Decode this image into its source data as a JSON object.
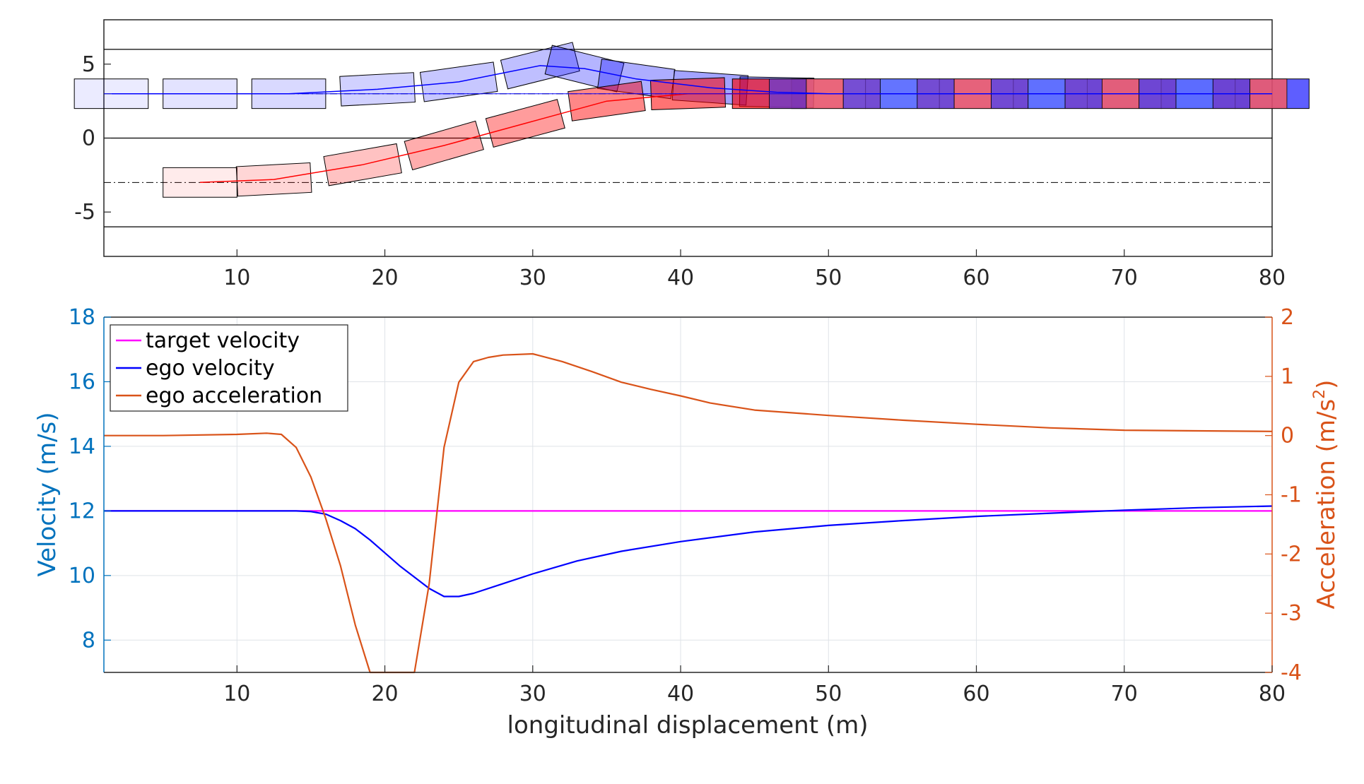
{
  "chart_data": [
    {
      "type": "scatter",
      "subtype": "lane-change trajectory (vehicle footprints)",
      "xlim": [
        1,
        80
      ],
      "ylim": [
        -8,
        8
      ],
      "x_ticks": [
        "10",
        "20",
        "30",
        "40",
        "50",
        "60",
        "70",
        "80"
      ],
      "y_ticks": [
        "5",
        "0",
        "-5"
      ],
      "lane_lines_y": [
        6,
        0,
        -6
      ],
      "lane_centers_y": [
        3,
        -3
      ],
      "grid": false,
      "series": [
        {
          "color": "#0000ff",
          "x": [
            1.5,
            7.5,
            13.5,
            19.5,
            25,
            30.5,
            33.5,
            37,
            42,
            46.5,
            50,
            55,
            60,
            65,
            70,
            75,
            80
          ],
          "y": [
            3,
            3,
            3,
            3.3,
            3.8,
            4.9,
            4.7,
            4.0,
            3.4,
            3.1,
            3.0,
            3.0,
            3.0,
            3.0,
            3.0,
            3.0,
            3.0
          ],
          "heading_deg": [
            0,
            0,
            0,
            3,
            8,
            14,
            -14,
            -8,
            -4,
            -1,
            0,
            0,
            0,
            0,
            0,
            0,
            0
          ]
        },
        {
          "color": "#ff0000",
          "x": [
            7.5,
            12.5,
            18.5,
            24,
            29.5,
            35,
            40.5,
            46
          ],
          "y": [
            -3,
            -2.8,
            -1.8,
            -0.5,
            1.0,
            2.5,
            3.0,
            3.0
          ],
          "heading_deg": [
            0,
            3,
            10,
            16,
            15,
            8,
            2,
            0
          ]
        }
      ],
      "overlap_boxes_x_range": [
        46,
        80
      ]
    },
    {
      "type": "line",
      "xlabel": "longitudinal displacement (m)",
      "ylabel_left": "Velocity (m/s)",
      "ylabel_right_base": "Acceleration (m/s",
      "ylabel_right_sup": "2",
      "ylabel_right_end": ")",
      "xlim": [
        1,
        80
      ],
      "ylim_left": [
        7,
        18
      ],
      "ylim_right": [
        -4,
        2
      ],
      "x_ticks": [
        "10",
        "20",
        "30",
        "40",
        "50",
        "60",
        "70",
        "80"
      ],
      "y_ticks_left": [
        "18",
        "16",
        "14",
        "12",
        "10",
        "8"
      ],
      "y_ticks_right": [
        "2",
        "1",
        "0",
        "-1",
        "-2",
        "-3",
        "-4"
      ],
      "grid": true,
      "legend": "top-left",
      "series": [
        {
          "name": "target velocity",
          "color": "#ff00ff",
          "axis": "left",
          "x": [
            1,
            80
          ],
          "y": [
            12,
            12
          ]
        },
        {
          "name": "ego velocity",
          "color": "#0000ff",
          "axis": "left",
          "x": [
            1,
            10,
            14,
            15,
            16,
            17,
            18,
            19,
            20,
            21,
            22,
            23,
            24,
            25,
            26,
            28,
            30,
            33,
            36,
            40,
            45,
            50,
            55,
            60,
            65,
            70,
            75,
            80
          ],
          "y": [
            12,
            12,
            12,
            11.98,
            11.9,
            11.7,
            11.45,
            11.1,
            10.7,
            10.3,
            9.95,
            9.6,
            9.35,
            9.35,
            9.45,
            9.75,
            10.05,
            10.45,
            10.75,
            11.05,
            11.35,
            11.55,
            11.7,
            11.83,
            11.93,
            12.02,
            12.1,
            12.15
          ]
        },
        {
          "name": "ego acceleration",
          "color": "#D95319",
          "axis": "right",
          "x": [
            1,
            5,
            10,
            12,
            13,
            14,
            15,
            16,
            17,
            18,
            19,
            20,
            21,
            22,
            23,
            24,
            25,
            26,
            27,
            28,
            30,
            32,
            34,
            36,
            38,
            40,
            42,
            45,
            50,
            55,
            60,
            65,
            70,
            75,
            80
          ],
          "y": [
            0,
            0,
            0.02,
            0.04,
            0.02,
            -0.2,
            -0.7,
            -1.4,
            -2.2,
            -3.2,
            -4.0,
            -4.0,
            -4.0,
            -4.0,
            -2.5,
            -0.2,
            0.9,
            1.25,
            1.32,
            1.36,
            1.38,
            1.25,
            1.08,
            0.9,
            0.78,
            0.67,
            0.55,
            0.43,
            0.34,
            0.26,
            0.19,
            0.13,
            0.09,
            0.08,
            0.07
          ]
        }
      ]
    }
  ]
}
